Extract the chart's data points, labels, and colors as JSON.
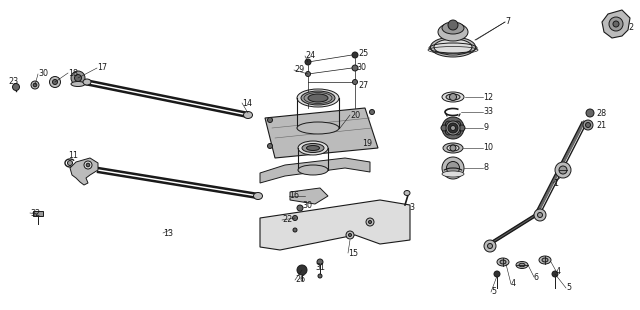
{
  "bg_color": "#ffffff",
  "lc": "#1a1a1a",
  "gray1": "#333333",
  "gray2": "#666666",
  "gray3": "#999999",
  "gray4": "#bbbbbb",
  "gray5": "#dddddd",
  "labels": [
    [
      "1",
      555,
      183
    ],
    [
      "2",
      628,
      27
    ],
    [
      "3",
      409,
      208
    ],
    [
      "4",
      554,
      271
    ],
    [
      "4",
      510,
      284
    ],
    [
      "5",
      565,
      288
    ],
    [
      "5",
      490,
      292
    ],
    [
      "6",
      533,
      277
    ],
    [
      "7",
      503,
      22
    ],
    [
      "8",
      486,
      183
    ],
    [
      "9",
      486,
      133
    ],
    [
      "10",
      486,
      155
    ],
    [
      "11",
      68,
      155
    ],
    [
      "12",
      486,
      103
    ],
    [
      "13",
      163,
      233
    ],
    [
      "14",
      242,
      103
    ],
    [
      "15",
      348,
      253
    ],
    [
      "16",
      289,
      196
    ],
    [
      "17",
      97,
      68
    ],
    [
      "18",
      68,
      73
    ],
    [
      "19",
      361,
      143
    ],
    [
      "20",
      350,
      115
    ],
    [
      "21",
      600,
      133
    ],
    [
      "22",
      282,
      220
    ],
    [
      "23",
      8,
      82
    ],
    [
      "24",
      305,
      56
    ],
    [
      "25",
      358,
      53
    ],
    [
      "26",
      295,
      280
    ],
    [
      "27",
      358,
      85
    ],
    [
      "28",
      599,
      115
    ],
    [
      "29",
      294,
      70
    ],
    [
      "30",
      38,
      74
    ],
    [
      "30",
      356,
      68
    ],
    [
      "30",
      302,
      205
    ],
    [
      "31",
      315,
      267
    ],
    [
      "32",
      30,
      213
    ],
    [
      "33",
      486,
      118
    ]
  ]
}
